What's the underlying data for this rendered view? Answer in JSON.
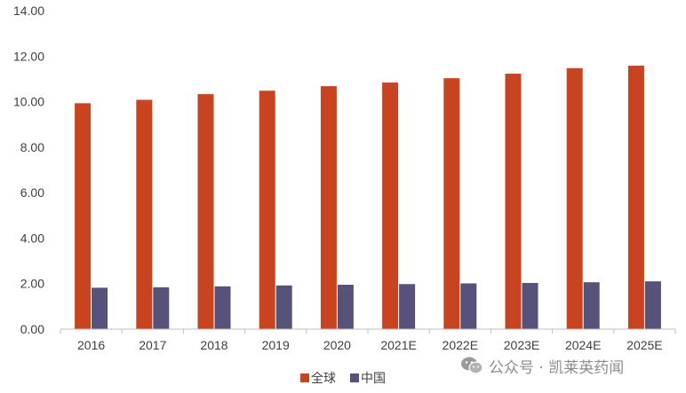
{
  "chart_data": {
    "type": "bar",
    "title": "",
    "xlabel": "",
    "ylabel": "",
    "ylim": [
      0,
      14
    ],
    "yticks": [
      "0.00",
      "2.00",
      "4.00",
      "6.00",
      "8.00",
      "10.00",
      "12.00",
      "14.00"
    ],
    "grid": false,
    "legend_position": "bottom",
    "categories": [
      "2016",
      "2017",
      "2018",
      "2019",
      "2020",
      "2021E",
      "2022E",
      "2023E",
      "2024E",
      "2025E"
    ],
    "series": [
      {
        "name": "全球",
        "color": "#c8431f",
        "values": [
          9.93,
          10.08,
          10.33,
          10.48,
          10.68,
          10.84,
          11.03,
          11.23,
          11.47,
          11.58
        ]
      },
      {
        "name": "中国",
        "color": "#575279",
        "values": [
          1.82,
          1.84,
          1.88,
          1.92,
          1.95,
          1.98,
          2.01,
          2.03,
          2.06,
          2.1
        ]
      }
    ]
  },
  "watermark": {
    "text": "公众号 · 凯莱英药闻",
    "icon": "wechat-icon"
  }
}
